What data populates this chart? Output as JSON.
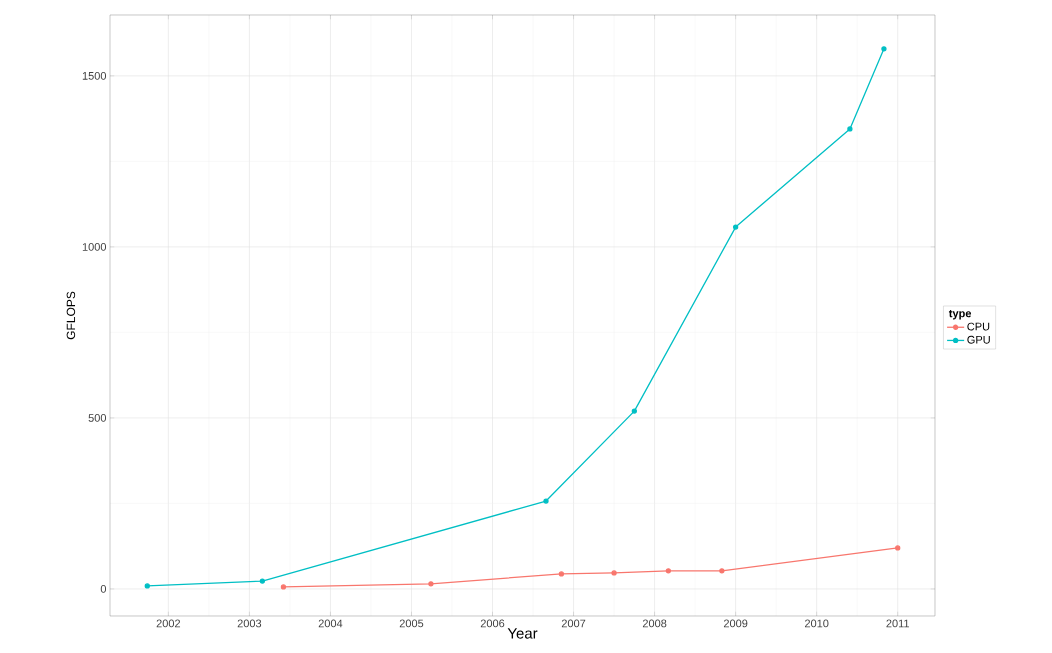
{
  "chart_data": {
    "type": "line",
    "xlabel": "Year",
    "ylabel": "GFLOPS",
    "legend_title": "type",
    "series": [
      {
        "name": "CPU",
        "color": "#f8766d",
        "x": [
          2003.42,
          2005.24,
          2006.85,
          2007.5,
          2008.17,
          2008.83,
          2011.0
        ],
        "values": [
          6,
          15,
          44,
          47,
          53,
          53,
          120
        ]
      },
      {
        "name": "GPU",
        "color": "#00bfc4",
        "x": [
          2001.74,
          2003.16,
          2006.66,
          2007.75,
          2009.0,
          2010.41,
          2010.83
        ],
        "values": [
          9,
          23,
          257,
          520,
          1058,
          1345,
          1579
        ]
      }
    ],
    "xlim": [
      2001.28,
      2011.46
    ],
    "ylim": [
      -79,
      1678
    ],
    "xticks": [
      2002,
      2003,
      2004,
      2005,
      2006,
      2007,
      2008,
      2009,
      2010,
      2011
    ],
    "yticks": [
      0,
      500,
      1000,
      1500
    ],
    "grid": true,
    "legend": "right",
    "marker": "circle",
    "line_style": "solid"
  }
}
